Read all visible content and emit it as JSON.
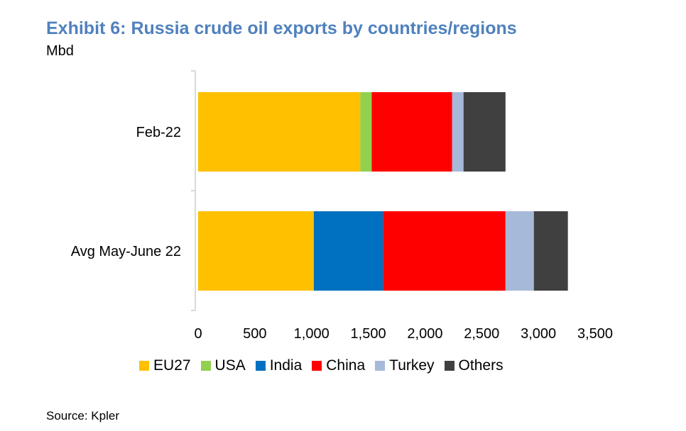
{
  "header": {
    "title": "Exhibit 6: Russia crude oil exports by countries/regions",
    "unit": "Mbd"
  },
  "footer": {
    "source": "Source: Kpler"
  },
  "chart_data": {
    "type": "bar",
    "orientation": "horizontal",
    "stacked": true,
    "categories": [
      "Feb-22",
      "Avg May-June 22"
    ],
    "series": [
      {
        "name": "EU27",
        "color": "#ffc000",
        "values": [
          1430,
          1020
        ]
      },
      {
        "name": "USA",
        "color": "#92d050",
        "values": [
          100,
          0
        ]
      },
      {
        "name": "India",
        "color": "#0070c0",
        "values": [
          0,
          610
        ]
      },
      {
        "name": "China",
        "color": "#ff0000",
        "values": [
          710,
          1080
        ]
      },
      {
        "name": "Turkey",
        "color": "#a6b9d8",
        "values": [
          100,
          250
        ]
      },
      {
        "name": "Others",
        "color": "#404040",
        "values": [
          370,
          300
        ]
      }
    ],
    "xlim": [
      0,
      3500
    ],
    "xticks": [
      "0",
      "500",
      "1,000",
      "1,500",
      "2,000",
      "2,500",
      "3,000",
      "3,500"
    ],
    "xtick_values": [
      0,
      500,
      1000,
      1500,
      2000,
      2500,
      3000,
      3500
    ],
    "legend_position": "bottom",
    "grid": false
  }
}
